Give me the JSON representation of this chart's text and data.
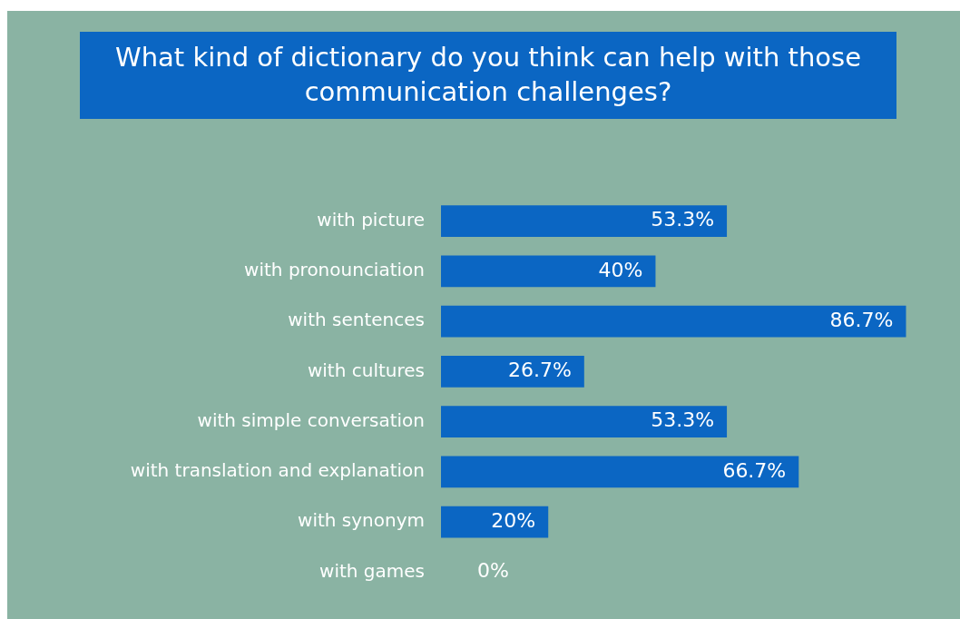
{
  "chart_data": {
    "type": "bar",
    "orientation": "horizontal",
    "title": "What kind of dictionary do you think can help with those communication challenges?",
    "categories": [
      "with picture",
      "with pronounciation",
      "with sentences",
      "with cultures",
      "with simple conversation",
      "with translation and explanation",
      "with synonym",
      "with games"
    ],
    "values": [
      53.3,
      40,
      86.7,
      26.7,
      53.3,
      66.7,
      20,
      0
    ],
    "value_labels": [
      "53.3%",
      "40%",
      "86.7%",
      "26.7%",
      "53.3%",
      "66.7%",
      "20%",
      "0%"
    ],
    "color": "#0b66c3",
    "legend": false
  }
}
